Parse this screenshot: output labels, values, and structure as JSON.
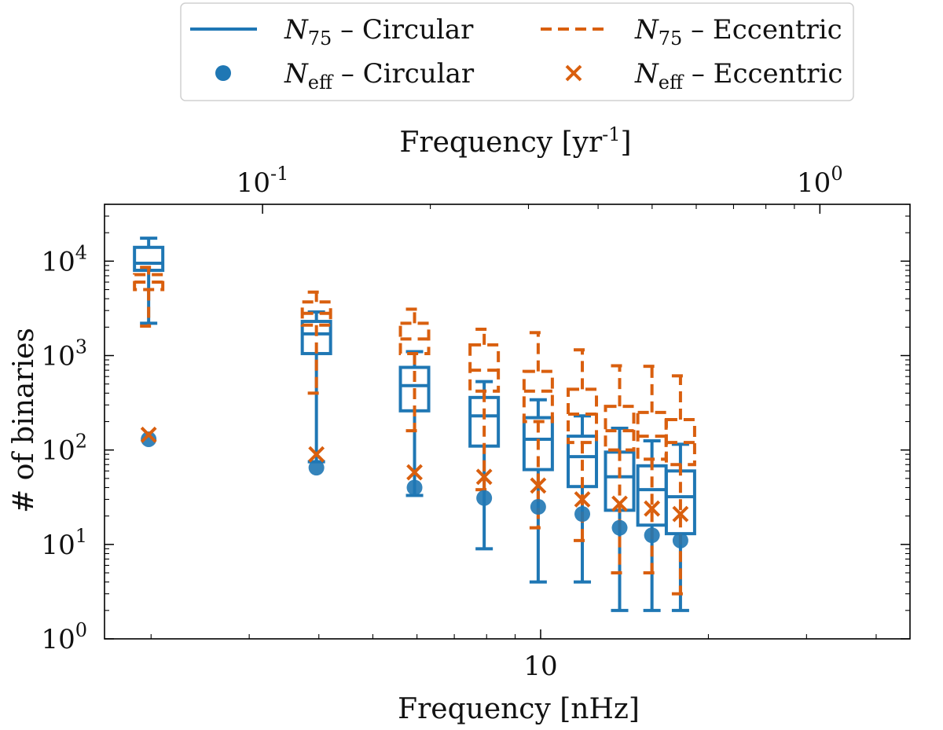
{
  "chart_data": {
    "type": "boxplot",
    "xlabel": "Frequency [nHz]",
    "top_xlabel": "Frequency [yr^-1]",
    "ylabel": "# of binaries",
    "x_scale": "log",
    "y_scale": "log",
    "xlim": [
      1.65,
      46
    ],
    "ylim": [
      1,
      40000
    ],
    "x_ticks": [
      {
        "value": 10,
        "label": "10"
      }
    ],
    "top_x_ticks": [
      {
        "value_nhz": 3.17,
        "label": "10^-1"
      },
      {
        "value_nhz": 31.7,
        "label": "10^0"
      }
    ],
    "y_ticks": [
      {
        "value": 1,
        "label": "10^0"
      },
      {
        "value": 10,
        "label": "10^1"
      },
      {
        "value": 100,
        "label": "10^2"
      },
      {
        "value": 1000,
        "label": "10^3"
      },
      {
        "value": 10000,
        "label": "10^4"
      }
    ],
    "legend": {
      "placement": "top-center",
      "entries": [
        {
          "key": "n75_circular",
          "label": "N75 – Circular",
          "main": "N",
          "sub": "75",
          "rest": " – Circular",
          "style": "solid-line",
          "color": "#1f77b4"
        },
        {
          "key": "neff_circular",
          "label": "Neff – Circular",
          "main": "N",
          "sub": "eff",
          "rest": " – Circular",
          "style": "circle",
          "color": "#1f77b4"
        },
        {
          "key": "n75_eccentric",
          "label": "N75 – Eccentric",
          "main": "N",
          "sub": "75",
          "rest": " – Eccentric",
          "style": "dashed-line",
          "color": "#d95f0e"
        },
        {
          "key": "neff_eccentric",
          "label": "Neff – Eccentric",
          "main": "N",
          "sub": "eff",
          "rest": " – Eccentric",
          "style": "x-marker",
          "color": "#d95f0e"
        }
      ]
    },
    "series": [
      {
        "name": "N75 – Circular",
        "color": "#1f77b4",
        "style": "solid",
        "boxes": [
          {
            "freq": 1.98,
            "whislo": 2200,
            "q1": 8000,
            "med": 9500,
            "q3": 14000,
            "whishi": 17500
          },
          {
            "freq": 3.96,
            "whislo": 75,
            "q1": 1050,
            "med": 1700,
            "q3": 2300,
            "whishi": 2900
          },
          {
            "freq": 5.94,
            "whislo": 33,
            "q1": 260,
            "med": 480,
            "q3": 750,
            "whishi": 1100
          },
          {
            "freq": 7.92,
            "whislo": 9,
            "q1": 110,
            "med": 230,
            "q3": 360,
            "whishi": 530
          },
          {
            "freq": 9.9,
            "whislo": 4,
            "q1": 62,
            "med": 130,
            "q3": 220,
            "whishi": 340
          },
          {
            "freq": 11.88,
            "whislo": 4,
            "q1": 41,
            "med": 85,
            "q3": 140,
            "whishi": 230
          },
          {
            "freq": 13.86,
            "whislo": 2,
            "q1": 23,
            "med": 52,
            "q3": 95,
            "whishi": 170
          },
          {
            "freq": 15.84,
            "whislo": 2,
            "q1": 16,
            "med": 38,
            "q3": 68,
            "whishi": 125
          },
          {
            "freq": 17.82,
            "whislo": 2,
            "q1": 13,
            "med": 32,
            "q3": 60,
            "whishi": 115
          }
        ]
      },
      {
        "name": "N75 – Eccentric",
        "color": "#d95f0e",
        "style": "dashed",
        "boxes": [
          {
            "freq": 1.98,
            "whislo": 2050,
            "q1": 5000,
            "med": 6000,
            "q3": 7200,
            "whishi": 8600
          },
          {
            "freq": 3.96,
            "whislo": 400,
            "q1": 2100,
            "med": 2800,
            "q3": 3700,
            "whishi": 4700
          },
          {
            "freq": 5.94,
            "whislo": 160,
            "q1": 1050,
            "med": 1500,
            "q3": 2200,
            "whishi": 3100
          },
          {
            "freq": 7.92,
            "whislo": 38,
            "q1": 420,
            "med": 700,
            "q3": 1300,
            "whishi": 1900
          },
          {
            "freq": 9.9,
            "whislo": 15,
            "q1": 200,
            "med": 420,
            "q3": 680,
            "whishi": 1750
          },
          {
            "freq": 11.88,
            "whislo": 11,
            "q1": 120,
            "med": 240,
            "q3": 440,
            "whishi": 1150
          },
          {
            "freq": 13.86,
            "whislo": 5,
            "q1": 100,
            "med": 160,
            "q3": 290,
            "whishi": 780
          },
          {
            "freq": 15.84,
            "whislo": 5,
            "q1": 80,
            "med": 140,
            "q3": 250,
            "whishi": 770
          },
          {
            "freq": 17.82,
            "whislo": 3,
            "q1": 70,
            "med": 120,
            "q3": 210,
            "whishi": 610
          }
        ]
      }
    ],
    "markers": [
      {
        "name": "Neff – Circular",
        "color": "#1f77b4",
        "style": "circle",
        "points": [
          {
            "freq": 1.98,
            "value": 130
          },
          {
            "freq": 3.96,
            "value": 65
          },
          {
            "freq": 5.94,
            "value": 40
          },
          {
            "freq": 7.92,
            "value": 31
          },
          {
            "freq": 9.9,
            "value": 25
          },
          {
            "freq": 11.88,
            "value": 21
          },
          {
            "freq": 13.86,
            "value": 15
          },
          {
            "freq": 15.84,
            "value": 12.5
          },
          {
            "freq": 17.82,
            "value": 11
          }
        ]
      },
      {
        "name": "Neff – Eccentric",
        "color": "#d95f0e",
        "style": "x",
        "points": [
          {
            "freq": 1.98,
            "value": 145
          },
          {
            "freq": 3.96,
            "value": 90
          },
          {
            "freq": 5.94,
            "value": 58
          },
          {
            "freq": 7.92,
            "value": 52
          },
          {
            "freq": 9.9,
            "value": 42
          },
          {
            "freq": 11.88,
            "value": 30
          },
          {
            "freq": 13.86,
            "value": 27
          },
          {
            "freq": 15.84,
            "value": 24
          },
          {
            "freq": 17.82,
            "value": 21
          }
        ]
      }
    ]
  }
}
